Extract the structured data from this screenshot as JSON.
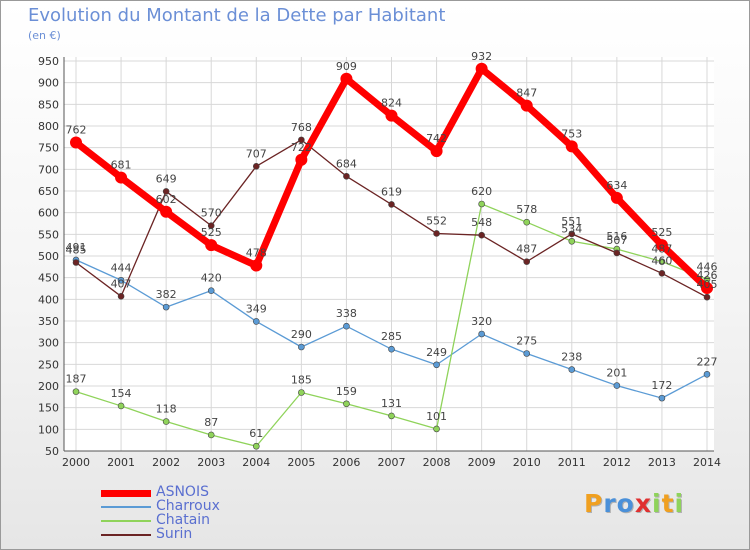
{
  "header": {
    "title": "Evolution du Montant de la Dette par Habitant",
    "subtitle": "(en €)"
  },
  "logo": {
    "text": "Proxiti"
  },
  "chart_data": {
    "type": "line",
    "title": "Evolution du Montant de la Dette par Habitant",
    "subtitle": "(en €)",
    "xlabel": "",
    "ylabel": "",
    "x": [
      "2000",
      "2001",
      "2002",
      "2003",
      "2004",
      "2005",
      "2006",
      "2007",
      "2008",
      "2009",
      "2010",
      "2011",
      "2012",
      "2013",
      "2014"
    ],
    "ylim": [
      50,
      950
    ],
    "yticks": [
      50,
      100,
      150,
      200,
      250,
      300,
      350,
      400,
      450,
      500,
      550,
      600,
      650,
      700,
      750,
      800,
      850,
      900,
      950
    ],
    "grid": true,
    "legend_position": "bottom-left",
    "series": [
      {
        "name": "ASNOIS",
        "color": "#ff0000",
        "values": [
          762,
          681,
          602,
          525,
          478,
          722,
          909,
          824,
          742,
          932,
          847,
          753,
          634,
          525,
          426
        ]
      },
      {
        "name": "Charroux",
        "color": "#5b9bd5",
        "values": [
          491,
          444,
          382,
          420,
          349,
          290,
          338,
          285,
          249,
          320,
          275,
          238,
          201,
          172,
          227
        ]
      },
      {
        "name": "Chatain",
        "color": "#8fd35a",
        "values": [
          187,
          154,
          118,
          87,
          61,
          185,
          159,
          131,
          101,
          620,
          578,
          534,
          516,
          487,
          446
        ]
      },
      {
        "name": "Surin",
        "color": "#6b2424",
        "values": [
          485,
          407,
          649,
          570,
          707,
          768,
          684,
          619,
          552,
          548,
          487,
          551,
          507,
          460,
          405
        ]
      }
    ]
  }
}
